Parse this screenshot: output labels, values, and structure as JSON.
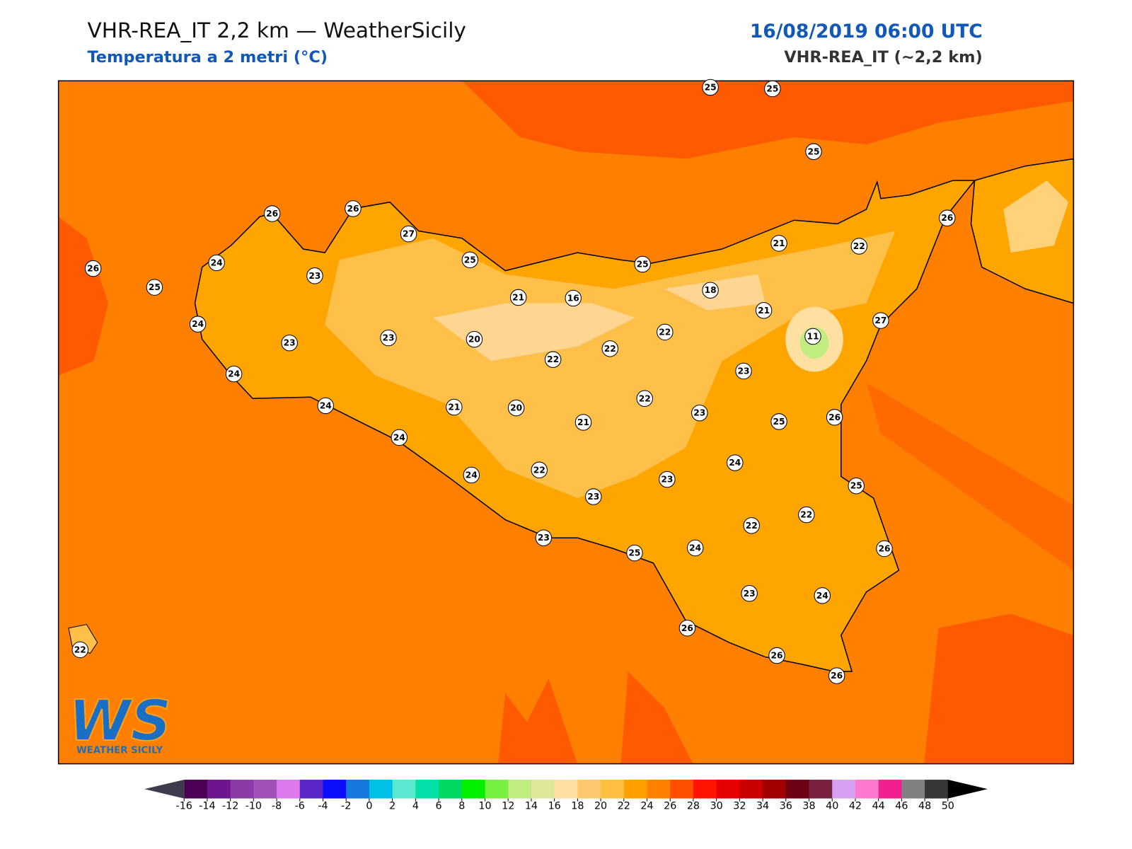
{
  "header": {
    "title": "VHR-REA_IT 2,2 km — WeatherSicily",
    "subtitle": "Temperatura a 2 metri (°C)",
    "date": "16/08/2019 06:00 UTC",
    "model": "VHR-REA_IT (~2,2 km)"
  },
  "stations": [
    25,
    25,
    25,
    26,
    26,
    27,
    25,
    24,
    26,
    25,
    23,
    25,
    21,
    22,
    26,
    21,
    16,
    18,
    21,
    24,
    23,
    23,
    20,
    22,
    22,
    22,
    11,
    27,
    24,
    23,
    24,
    21,
    20,
    21,
    22,
    23,
    25,
    26,
    24,
    24,
    24,
    22,
    23,
    25,
    23,
    22,
    22,
    23,
    25,
    24,
    26,
    23,
    24,
    26,
    26,
    26,
    22
  ],
  "colorbar": {
    "ticks": [
      -16,
      -14,
      -12,
      -10,
      -8,
      -6,
      -4,
      -2,
      0,
      2,
      4,
      6,
      8,
      10,
      12,
      14,
      16,
      18,
      20,
      22,
      24,
      26,
      28,
      30,
      32,
      34,
      36,
      38,
      40,
      42,
      44,
      46,
      48,
      50
    ],
    "colors": [
      "#4b0055",
      "#6e1490",
      "#8b3aa8",
      "#a050b8",
      "#dc78ec",
      "#5a28c8",
      "#0a10fa",
      "#1478dc",
      "#00c0e8",
      "#5ae8d0",
      "#00e0a8",
      "#00d860",
      "#00f000",
      "#78f040",
      "#c0ec80",
      "#e0e898",
      "#ffe0a0",
      "#ffc870",
      "#ffc040",
      "#ffa000",
      "#ff8000",
      "#ff5000",
      "#ff1400",
      "#e60000",
      "#c80000",
      "#a00000",
      "#6e0014",
      "#7a2040",
      "#d8a0f0",
      "#ff78d0",
      "#f02090",
      "#808080",
      "#363636"
    ],
    "extend_colors": [
      "#3c3c4c",
      "#000000"
    ]
  },
  "logo": {
    "mark": "WS",
    "name": "WEATHER SICILY"
  }
}
